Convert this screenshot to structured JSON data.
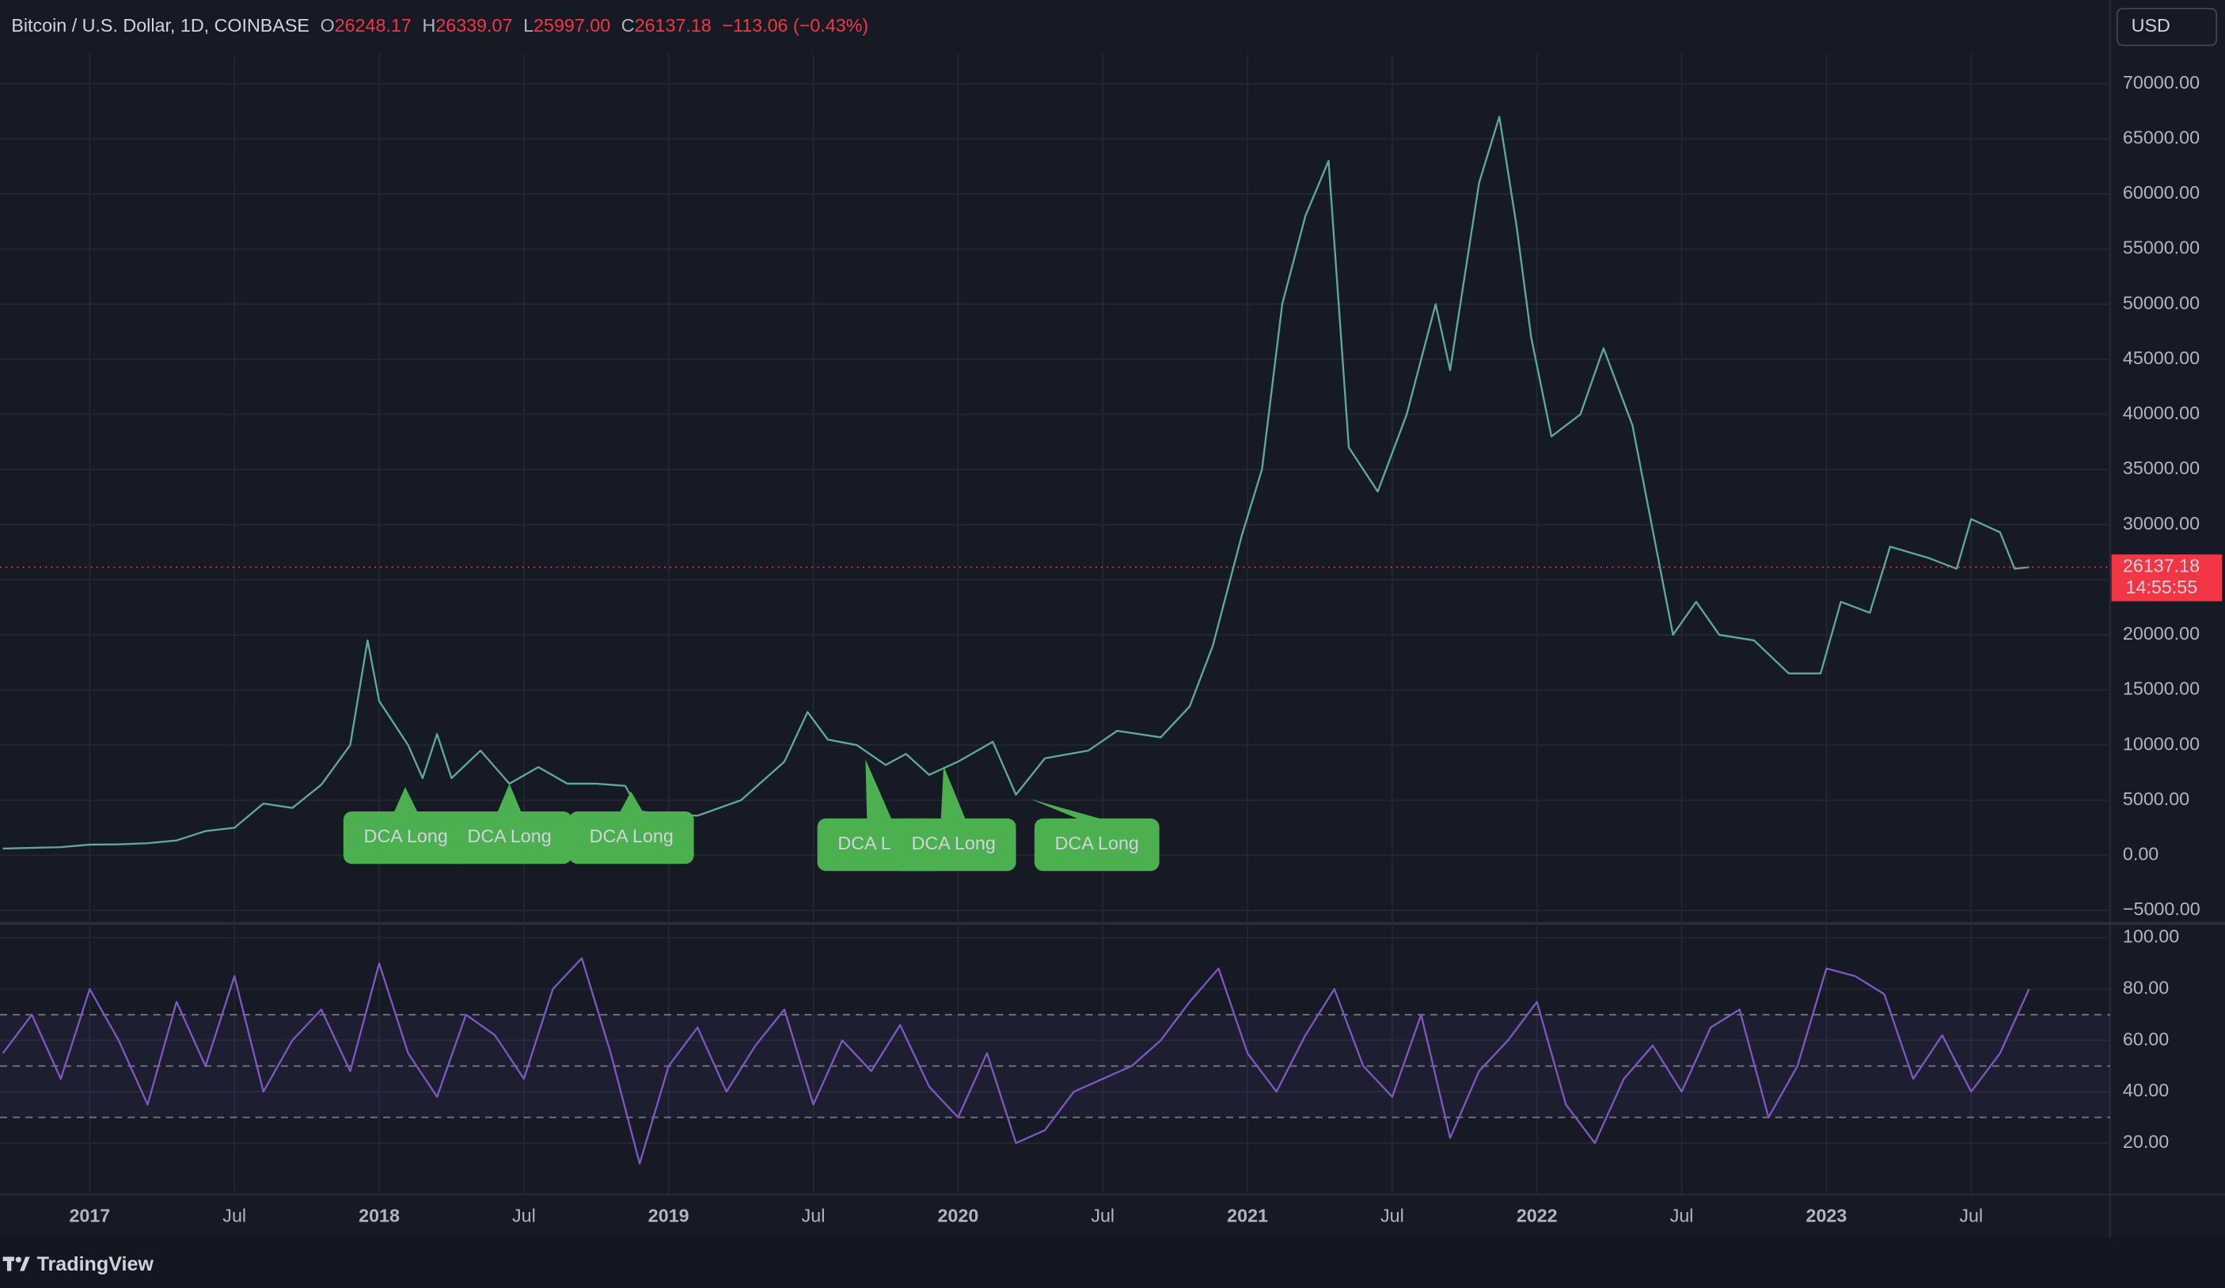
{
  "header": {
    "symbol": "Bitcoin / U.S. Dollar, 1D, COINBASE",
    "o_label": "O",
    "open": 26248.17,
    "h_label": "H",
    "high": 26339.07,
    "l_label": "L",
    "low": "25997.00",
    "c_label": "C",
    "change": "−113.06 (−0.43%)",
    "currency": "USD"
  },
  "footer": {
    "brand": "TradingView"
  },
  "chart_data": [
    {
      "type": "line",
      "color": "#5fa8a0",
      "last": 26137.18,
      "last_color": "#f23645",
      "countdown": "14:55:55",
      "x": [
        2016.7,
        2016.9,
        2017.0,
        2017.1,
        2017.2,
        2017.3,
        2017.4,
        2017.5,
        2017.6,
        2017.7,
        2017.8,
        2017.9,
        2017.96,
        2018.0,
        2018.1,
        2018.15,
        2018.2,
        2018.25,
        2018.35,
        2018.45,
        2018.55,
        2018.65,
        2018.75,
        2018.85,
        2018.9,
        2018.98,
        2019.1,
        2019.25,
        2019.4,
        2019.48,
        2019.55,
        2019.65,
        2019.75,
        2019.82,
        2019.9,
        2020.0,
        2020.12,
        2020.2,
        2020.3,
        2020.45,
        2020.55,
        2020.7,
        2020.8,
        2020.88,
        2020.98,
        2021.05,
        2021.12,
        2021.2,
        2021.28,
        2021.35,
        2021.45,
        2021.55,
        2021.65,
        2021.7,
        2021.8,
        2021.87,
        2021.93,
        2021.98,
        2022.05,
        2022.15,
        2022.23,
        2022.33,
        2022.4,
        2022.47,
        2022.55,
        2022.63,
        2022.75,
        2022.87,
        2022.98,
        2023.05,
        2023.15,
        2023.22,
        2023.35,
        2023.45,
        2023.5,
        2023.6,
        2023.65,
        2023.7
      ],
      "values": [
        610,
        740,
        970,
        1000,
        1100,
        1350,
        2200,
        2500,
        4700,
        4300,
        6400,
        10000,
        19500,
        14000,
        10000,
        7000,
        11000,
        7000,
        9500,
        6500,
        8000,
        6500,
        6500,
        6300,
        4000,
        3700,
        3600,
        5000,
        8500,
        13000,
        10500,
        10000,
        8200,
        9200,
        7300,
        8500,
        10300,
        5500,
        8800,
        9500,
        11300,
        10700,
        13500,
        19000,
        29000,
        35000,
        50000,
        58000,
        63000,
        37000,
        33000,
        40000,
        50000,
        44000,
        61000,
        67000,
        57000,
        47000,
        38000,
        40000,
        46000,
        39000,
        29500,
        20000,
        23000,
        20000,
        19500,
        16500,
        16500,
        23000,
        22000,
        28000,
        27000,
        26000,
        30500,
        29300,
        26000,
        26137.18
      ],
      "xlim": [
        2016.69,
        2023.98
      ],
      "xticks": [
        {
          "value": 2017,
          "label": "2017"
        },
        {
          "value": 2017.5,
          "label": "Jul"
        },
        {
          "value": 2018,
          "label": "2018"
        },
        {
          "value": 2018.5,
          "label": "Jul"
        },
        {
          "value": 2019,
          "label": "2019"
        },
        {
          "value": 2019.5,
          "label": "Jul"
        },
        {
          "value": 2020,
          "label": "2020"
        },
        {
          "value": 2020.5,
          "label": "Jul"
        },
        {
          "value": 2021,
          "label": "2021"
        },
        {
          "value": 2021.5,
          "label": "Jul"
        },
        {
          "value": 2022,
          "label": "2022"
        },
        {
          "value": 2022.5,
          "label": "Jul"
        },
        {
          "value": 2023,
          "label": "2023"
        },
        {
          "value": 2023.5,
          "label": "Jul"
        }
      ],
      "ylim": [
        -6050,
        72700
      ],
      "yticks": [
        {
          "value": -5000,
          "label": "−5000.00"
        },
        {
          "value": 0,
          "label": "0.00"
        },
        {
          "value": 5000,
          "label": "5000.00"
        },
        {
          "value": 10000,
          "label": "10000.00"
        },
        {
          "value": 15000,
          "label": "15000.00"
        },
        {
          "value": 20000,
          "label": "20000.00"
        },
        {
          "value": 25000,
          "label": "25000.00"
        },
        {
          "value": 30000,
          "label": "30000.00"
        },
        {
          "value": 35000,
          "label": "35000.00"
        },
        {
          "value": 40000,
          "label": "40000.00"
        },
        {
          "value": 45000,
          "label": "45000.00"
        },
        {
          "value": 50000,
          "label": "50000.00"
        },
        {
          "value": 55000,
          "label": "55000.00"
        },
        {
          "value": 60000,
          "label": "60000.00"
        },
        {
          "value": 65000,
          "label": "65000.00"
        },
        {
          "value": 70000,
          "label": "70000.00"
        }
      ],
      "grid": true,
      "annotations": [
        {
          "text": "DCA Long",
          "x": 2018.09,
          "y": 6200
        },
        {
          "text": "DCA Long",
          "x": 2018.45,
          "y": 6500
        },
        {
          "text": "DCA Long",
          "x": 2018.87,
          "y": 5800
        },
        {
          "text": "DCA Long",
          "x": 2019.68,
          "y": 8700
        },
        {
          "text": "DCA Long",
          "x": 2019.95,
          "y": 8100
        },
        {
          "text": "DCA Long",
          "x": 2020.25,
          "y": 5100
        }
      ],
      "annotation_color": "#4caf50"
    },
    {
      "type": "line",
      "color": "#7e57c2",
      "x": [
        2016.7,
        2016.8,
        2016.9,
        2017.0,
        2017.1,
        2017.2,
        2017.3,
        2017.4,
        2017.5,
        2017.6,
        2017.7,
        2017.8,
        2017.9,
        2018.0,
        2018.1,
        2018.2,
        2018.3,
        2018.4,
        2018.5,
        2018.6,
        2018.7,
        2018.8,
        2018.9,
        2019.0,
        2019.1,
        2019.2,
        2019.3,
        2019.4,
        2019.5,
        2019.6,
        2019.7,
        2019.8,
        2019.9,
        2020.0,
        2020.1,
        2020.2,
        2020.3,
        2020.4,
        2020.5,
        2020.6,
        2020.7,
        2020.8,
        2020.9,
        2021.0,
        2021.1,
        2021.2,
        2021.3,
        2021.4,
        2021.5,
        2021.6,
        2021.7,
        2021.8,
        2021.9,
        2022.0,
        2022.1,
        2022.2,
        2022.3,
        2022.4,
        2022.5,
        2022.6,
        2022.7,
        2022.8,
        2022.9,
        2023.0,
        2023.1,
        2023.2,
        2023.3,
        2023.4,
        2023.5,
        2023.6,
        2023.7
      ],
      "values": [
        55,
        70,
        45,
        80,
        60,
        35,
        75,
        50,
        85,
        40,
        60,
        72,
        48,
        90,
        55,
        38,
        70,
        62,
        45,
        80,
        92,
        55,
        12,
        50,
        65,
        40,
        58,
        72,
        35,
        60,
        48,
        66,
        42,
        30,
        55,
        20,
        25,
        40,
        45,
        50,
        60,
        75,
        88,
        55,
        40,
        62,
        80,
        50,
        38,
        70,
        22,
        48,
        60,
        75,
        35,
        20,
        45,
        58,
        40,
        65,
        72,
        30,
        50,
        88,
        85,
        78,
        45,
        62,
        40,
        55,
        80
      ],
      "xlim": [
        2016.69,
        2023.98
      ],
      "ylim": [
        0,
        105
      ],
      "yticks": [
        {
          "value": 20,
          "label": "20.00"
        },
        {
          "value": 40,
          "label": "40.00"
        },
        {
          "value": 60,
          "label": "60.00"
        },
        {
          "value": 80,
          "label": "80.00"
        },
        {
          "value": 100,
          "label": "100.00"
        }
      ],
      "hlines": [
        70,
        50,
        30
      ]
    }
  ]
}
